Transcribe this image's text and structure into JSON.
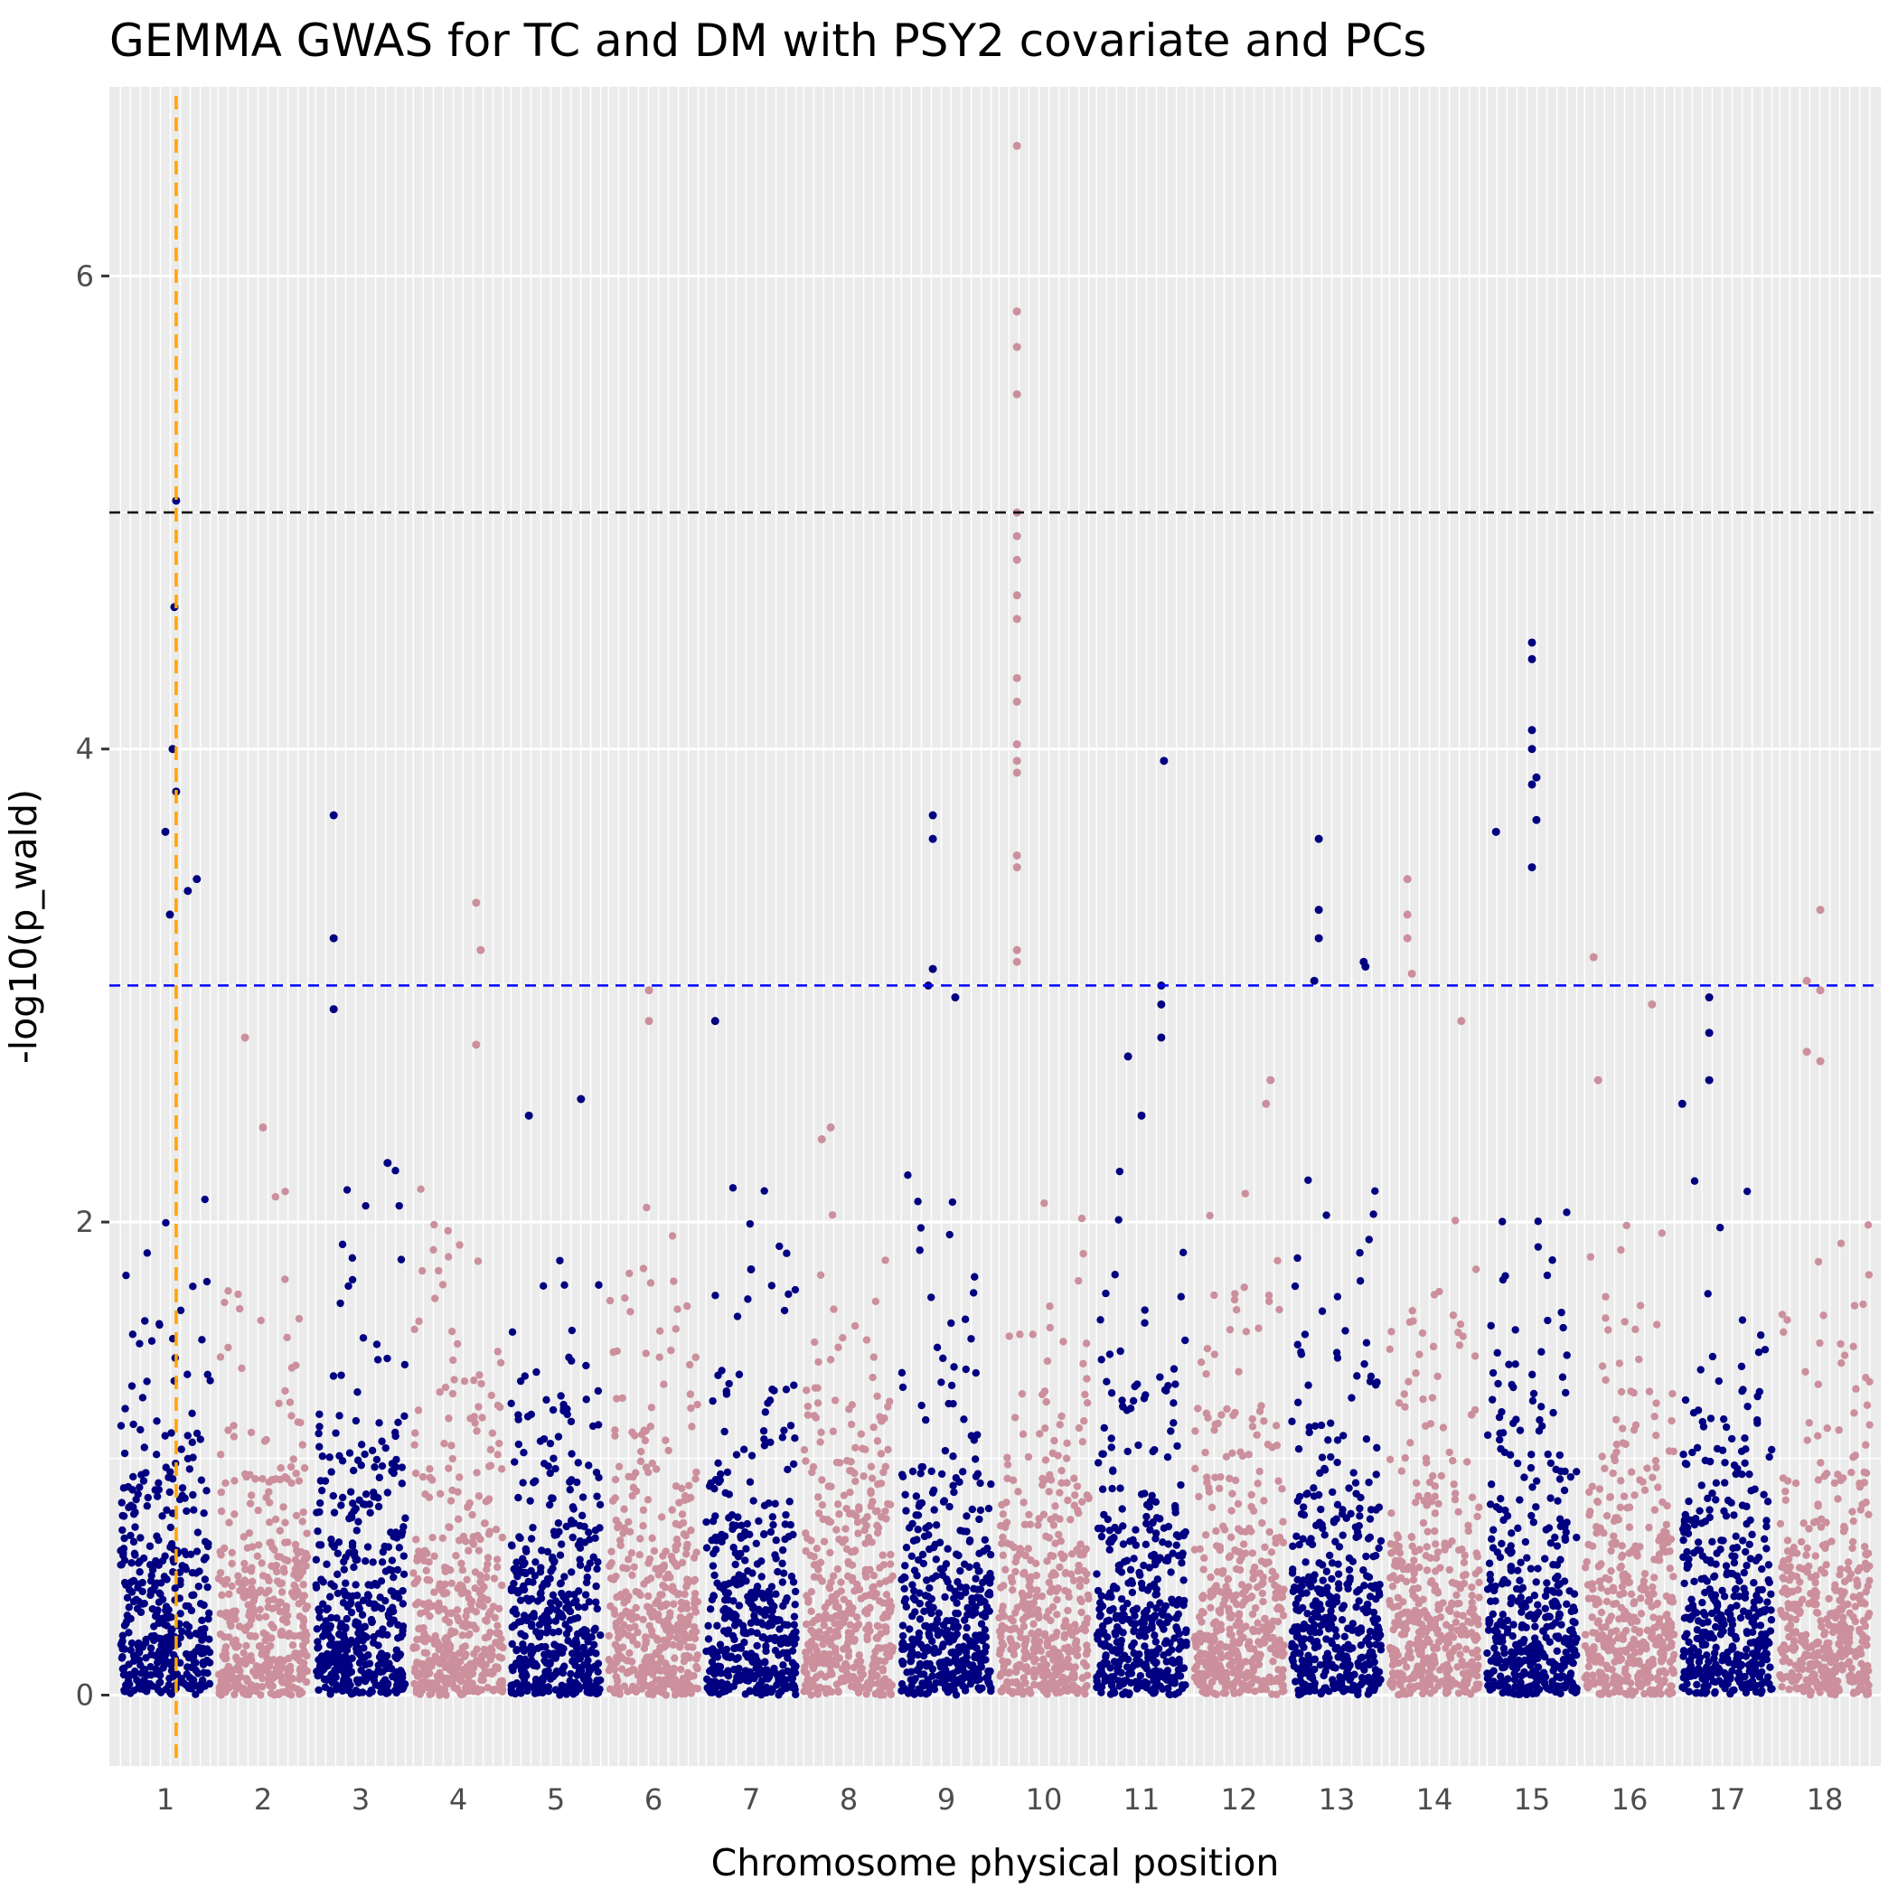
{
  "chart_data": {
    "type": "scatter",
    "title": "GEMMA GWAS for TC and DM with PSY2 covariate and PCs",
    "xlabel": "Chromosome physical position",
    "ylabel": "-log10(p_wald)",
    "ylim": [
      -0.3,
      6.8
    ],
    "yticks": [
      0,
      2,
      4,
      6
    ],
    "grid": true,
    "legend": "none",
    "colors": {
      "odd_chromosome": "#000080",
      "even_chromosome": "#CC8F9C",
      "panel_background": "#EBEBEB",
      "grid": "#FFFFFF",
      "suggestive_line": "#0000FF",
      "genomewide_line": "#000000",
      "marker_line": "#FFA500"
    },
    "thresholds": [
      {
        "name": "genome-wide",
        "y": 5.0,
        "color": "#000000"
      },
      {
        "name": "suggestive",
        "y": 3.0,
        "color": "#0000FF"
      }
    ],
    "marker_line": {
      "chromosome": "1",
      "position": 0.62,
      "color": "#FFA500"
    },
    "chromosomes": [
      {
        "label": "1",
        "peaks": [
          [
            0.62,
            5.05
          ],
          [
            0.6,
            4.6
          ],
          [
            0.58,
            4.0
          ],
          [
            0.62,
            3.82
          ],
          [
            0.5,
            3.65
          ],
          [
            0.85,
            3.45
          ],
          [
            0.75,
            3.4
          ],
          [
            0.55,
            3.3
          ]
        ]
      },
      {
        "label": "2",
        "peaks": [
          [
            0.3,
            2.78
          ],
          [
            0.5,
            2.4
          ]
        ]
      },
      {
        "label": "3",
        "peaks": [
          [
            0.2,
            3.72
          ],
          [
            0.2,
            3.2
          ],
          [
            0.2,
            2.9
          ],
          [
            0.8,
            2.25
          ]
        ]
      },
      {
        "label": "4",
        "peaks": [
          [
            0.7,
            3.35
          ],
          [
            0.75,
            3.15
          ],
          [
            0.7,
            2.75
          ]
        ]
      },
      {
        "label": "5",
        "peaks": [
          [
            0.78,
            2.52
          ],
          [
            0.2,
            2.45
          ]
        ]
      },
      {
        "label": "6",
        "peaks": [
          [
            0.45,
            2.98
          ],
          [
            0.45,
            2.85
          ]
        ]
      },
      {
        "label": "7",
        "peaks": [
          [
            0.1,
            2.85
          ],
          [
            0.5,
            1.8
          ]
        ]
      },
      {
        "label": "8",
        "peaks": [
          [
            0.3,
            2.4
          ],
          [
            0.2,
            2.35
          ]
        ]
      },
      {
        "label": "9",
        "peaks": [
          [
            0.35,
            3.72
          ],
          [
            0.35,
            3.62
          ],
          [
            0.35,
            3.07
          ],
          [
            0.3,
            3.0
          ],
          [
            0.6,
            2.95
          ]
        ]
      },
      {
        "label": "10",
        "peaks": [
          [
            0.2,
            6.55
          ],
          [
            0.2,
            5.85
          ],
          [
            0.2,
            5.7
          ],
          [
            0.2,
            5.5
          ],
          [
            0.2,
            5.0
          ],
          [
            0.2,
            4.9
          ],
          [
            0.2,
            4.8
          ],
          [
            0.2,
            4.65
          ],
          [
            0.2,
            4.55
          ],
          [
            0.2,
            4.3
          ],
          [
            0.2,
            4.2
          ],
          [
            0.2,
            4.02
          ],
          [
            0.2,
            3.95
          ],
          [
            0.2,
            3.9
          ],
          [
            0.2,
            3.55
          ],
          [
            0.2,
            3.5
          ],
          [
            0.2,
            3.15
          ],
          [
            0.2,
            3.1
          ]
        ]
      },
      {
        "label": "11",
        "peaks": [
          [
            0.75,
            3.95
          ],
          [
            0.72,
            3.0
          ],
          [
            0.72,
            2.92
          ],
          [
            0.72,
            2.78
          ],
          [
            0.35,
            2.7
          ],
          [
            0.5,
            2.45
          ]
        ]
      },
      {
        "label": "12",
        "peaks": [
          [
            0.85,
            2.6
          ],
          [
            0.8,
            2.5
          ]
        ]
      },
      {
        "label": "13",
        "peaks": [
          [
            0.3,
            3.62
          ],
          [
            0.3,
            3.32
          ],
          [
            0.3,
            3.2
          ],
          [
            0.8,
            3.1
          ],
          [
            0.82,
            3.08
          ],
          [
            0.25,
            3.02
          ]
        ]
      },
      {
        "label": "14",
        "peaks": [
          [
            0.2,
            3.45
          ],
          [
            0.2,
            3.3
          ],
          [
            0.2,
            3.2
          ],
          [
            0.25,
            3.05
          ],
          [
            0.8,
            2.85
          ]
        ]
      },
      {
        "label": "15",
        "peaks": [
          [
            0.5,
            4.45
          ],
          [
            0.5,
            4.38
          ],
          [
            0.5,
            4.08
          ],
          [
            0.5,
            4.0
          ],
          [
            0.55,
            3.88
          ],
          [
            0.5,
            3.85
          ],
          [
            0.55,
            3.7
          ],
          [
            0.1,
            3.65
          ],
          [
            0.5,
            3.5
          ]
        ]
      },
      {
        "label": "16",
        "peaks": [
          [
            0.1,
            3.12
          ],
          [
            0.15,
            2.6
          ],
          [
            0.75,
            2.92
          ]
        ]
      },
      {
        "label": "17",
        "peaks": [
          [
            0.3,
            2.95
          ],
          [
            0.3,
            2.8
          ],
          [
            0.3,
            2.6
          ],
          [
            0.0,
            2.5
          ]
        ]
      },
      {
        "label": "18",
        "peaks": [
          [
            0.45,
            3.32
          ],
          [
            0.3,
            3.02
          ],
          [
            0.45,
            2.98
          ],
          [
            0.3,
            2.72
          ],
          [
            0.45,
            2.68
          ]
        ]
      }
    ]
  }
}
